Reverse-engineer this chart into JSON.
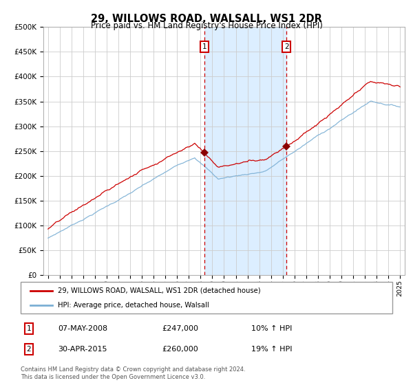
{
  "title": "29, WILLOWS ROAD, WALSALL, WS1 2DR",
  "subtitle": "Price paid vs. HM Land Registry's House Price Index (HPI)",
  "legend_line1": "29, WILLOWS ROAD, WALSALL, WS1 2DR (detached house)",
  "legend_line2": "HPI: Average price, detached house, Walsall",
  "transaction1_date": "07-MAY-2008",
  "transaction1_price": 247000,
  "transaction1_pct": "10%",
  "transaction1_year": 2008.35,
  "transaction2_date": "30-APR-2015",
  "transaction2_price": 260000,
  "transaction2_pct": "19%",
  "transaction2_year": 2015.33,
  "footer": "Contains HM Land Registry data © Crown copyright and database right 2024.\nThis data is licensed under the Open Government Licence v3.0.",
  "hpi_color": "#7bafd4",
  "property_color": "#cc0000",
  "marker_color": "#8b0000",
  "shading_color": "#dceeff",
  "dashed_color": "#cc0000",
  "background_color": "#ffffff",
  "grid_color": "#cccccc",
  "ylim": [
    0,
    500000
  ],
  "yticks": [
    0,
    50000,
    100000,
    150000,
    200000,
    250000,
    300000,
    350000,
    400000,
    450000,
    500000
  ],
  "start_year": 1995,
  "end_year": 2025
}
